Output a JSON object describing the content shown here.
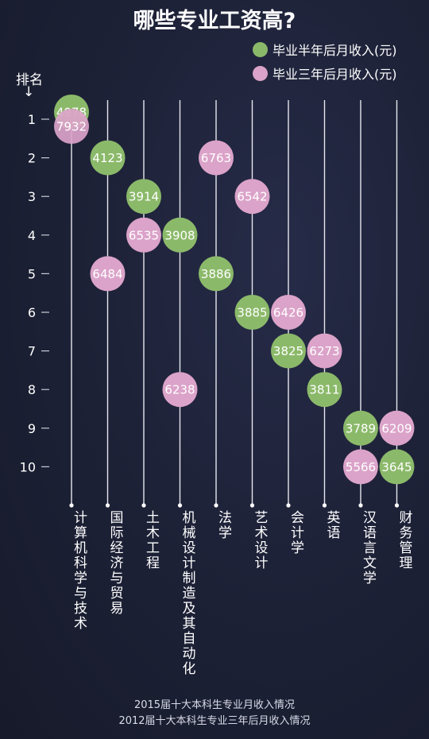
{
  "title": "哪些专业工资高?",
  "colors": {
    "series1": "#8bb96a",
    "series2": "#dba3c9"
  },
  "footer": {
    "line1": "2015届十大本科生专业月收入情况",
    "line2": "2012届十大本科生专业三年后月收入情况"
  },
  "chart_data": {
    "type": "scatter",
    "title": "哪些专业工资高?",
    "ylabel": "排名",
    "ylabel_arrow": "↓",
    "ranks": [
      1,
      2,
      3,
      4,
      5,
      6,
      7,
      8,
      9,
      10
    ],
    "ylim": [
      1,
      10
    ],
    "y_inverted": true,
    "legend_position": "top-right",
    "grid": false,
    "categories": [
      "计算机科学与技术",
      "国际经济与贸易",
      "土木工程",
      "机械设计制造及其自动化",
      "法学",
      "艺术设计",
      "会计学",
      "英语",
      "汉语言文学",
      "财务管理"
    ],
    "series": [
      {
        "name": "毕业半年后月收入(元)",
        "color": "#8bb96a",
        "points": [
          {
            "category": "计算机科学与技术",
            "rank": 1,
            "value": 4978
          },
          {
            "category": "国际经济与贸易",
            "rank": 2,
            "value": 4123
          },
          {
            "category": "土木工程",
            "rank": 3,
            "value": 3914
          },
          {
            "category": "机械设计制造及其自动化",
            "rank": 4,
            "value": 3908
          },
          {
            "category": "法学",
            "rank": 5,
            "value": 3886
          },
          {
            "category": "艺术设计",
            "rank": 6,
            "value": 3885
          },
          {
            "category": "会计学",
            "rank": 7,
            "value": 3825
          },
          {
            "category": "英语",
            "rank": 8,
            "value": 3811
          },
          {
            "category": "汉语言文学",
            "rank": 9,
            "value": 3789
          },
          {
            "category": "财务管理",
            "rank": 10,
            "value": 3645
          }
        ]
      },
      {
        "name": "毕业三年后月收入(元)",
        "color": "#dba3c9",
        "points": [
          {
            "category": "计算机科学与技术",
            "rank": 1,
            "value": 7932
          },
          {
            "category": "法学",
            "rank": 2,
            "value": 6763
          },
          {
            "category": "艺术设计",
            "rank": 3,
            "value": 6542
          },
          {
            "category": "土木工程",
            "rank": 4,
            "value": 6535
          },
          {
            "category": "国际经济与贸易",
            "rank": 5,
            "value": 6484
          },
          {
            "category": "会计学",
            "rank": 6,
            "value": 6426
          },
          {
            "category": "英语",
            "rank": 7,
            "value": 6273
          },
          {
            "category": "机械设计制造及其自动化",
            "rank": 8,
            "value": 6238
          },
          {
            "category": "财务管理",
            "rank": 9,
            "value": 6209
          },
          {
            "category": "汉语言文学",
            "rank": 10,
            "value": 5566
          }
        ]
      }
    ]
  }
}
